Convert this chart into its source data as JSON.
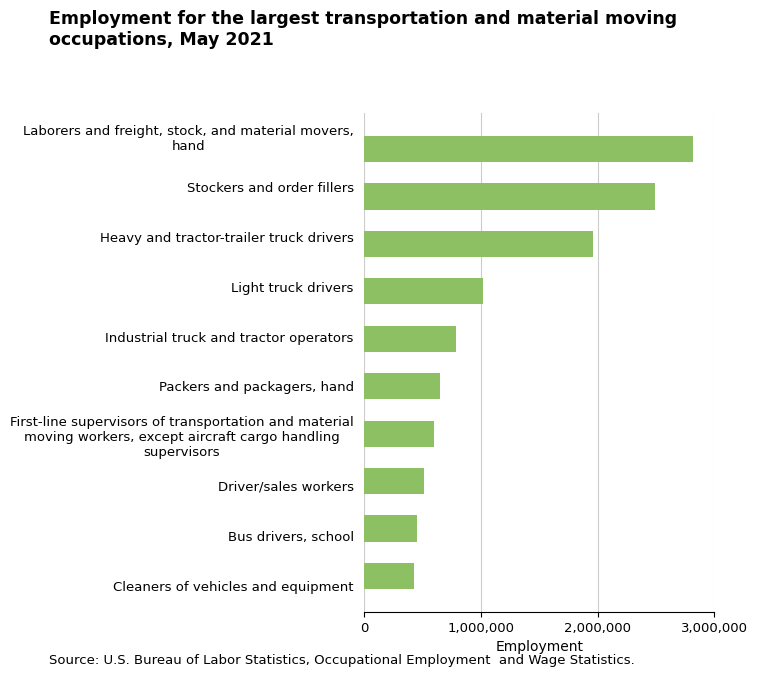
{
  "title_line1": "Employment for the largest transportation and material moving",
  "title_line2": "occupations, May 2021",
  "categories": [
    "Cleaners of vehicles and equipment",
    "Bus drivers, school",
    "Driver/sales workers",
    "First-line supervisors of transportation and material\nmoving workers, except aircraft cargo handling\nsupervisors",
    "Packers and packagers, hand",
    "Industrial truck and tractor operators",
    "Light truck drivers",
    "Heavy and tractor-trailer truck drivers",
    "Stockers and order fillers",
    "Laborers and freight, stock, and material movers,\nhand"
  ],
  "values": [
    430000,
    455000,
    510000,
    600000,
    650000,
    790000,
    1020000,
    1960000,
    2490000,
    2820000
  ],
  "bar_color": "#8dc063",
  "xlabel": "Employment",
  "xlim": [
    0,
    3000000
  ],
  "xticks": [
    0,
    1000000,
    2000000,
    3000000
  ],
  "xtick_labels": [
    "0",
    "1,000,000",
    "2,000,000",
    "3,000,000"
  ],
  "source_text": "Source: U.S. Bureau of Labor Statistics, Occupational Employment  and Wage Statistics.",
  "title_fontsize": 12.5,
  "tick_fontsize": 9.5,
  "source_fontsize": 9.5,
  "xlabel_fontsize": 10,
  "background_color": "#ffffff",
  "grid_color": "#cccccc"
}
